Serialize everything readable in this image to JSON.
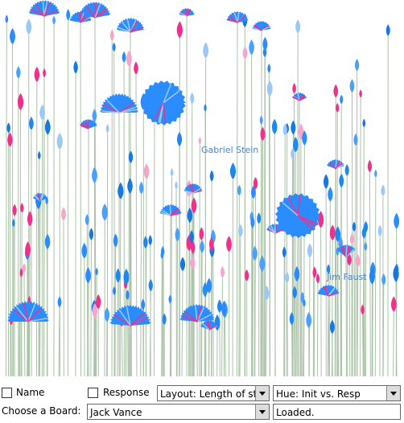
{
  "annotations": [
    "Gabriel Stein",
    "Jim Faust"
  ],
  "controls": {
    "name_checkbox": "Name",
    "response_checkbox": "Response",
    "layout_select": "Layout: Length of stay",
    "hue_select": "Hue: Init vs. Resp",
    "board_label": "Choose a Board:",
    "board_select": "Jack Vance",
    "status": "Loaded."
  }
}
